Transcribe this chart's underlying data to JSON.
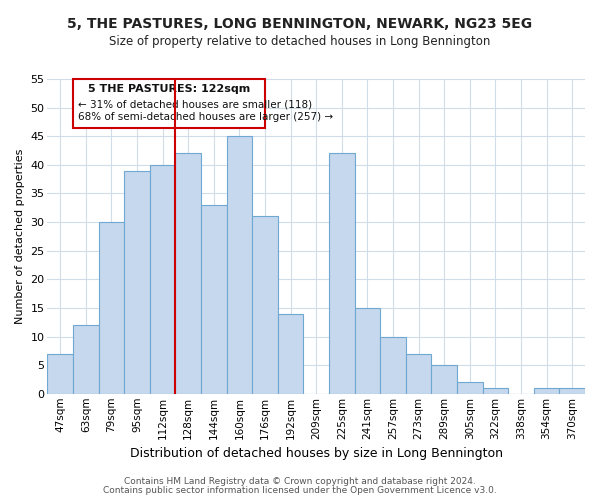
{
  "title": "5, THE PASTURES, LONG BENNINGTON, NEWARK, NG23 5EG",
  "subtitle": "Size of property relative to detached houses in Long Bennington",
  "xlabel": "Distribution of detached houses by size in Long Bennington",
  "ylabel": "Number of detached properties",
  "bar_color": "#c5d8ee",
  "bar_edge_color": "#6fa8d0",
  "categories": [
    "47sqm",
    "63sqm",
    "79sqm",
    "95sqm",
    "112sqm",
    "128sqm",
    "144sqm",
    "160sqm",
    "176sqm",
    "192sqm",
    "209sqm",
    "225sqm",
    "241sqm",
    "257sqm",
    "273sqm",
    "289sqm",
    "305sqm",
    "322sqm",
    "338sqm",
    "354sqm",
    "370sqm"
  ],
  "values": [
    7,
    12,
    30,
    39,
    40,
    42,
    33,
    45,
    31,
    14,
    0,
    42,
    15,
    10,
    7,
    5,
    2,
    1,
    0,
    1,
    1
  ],
  "ylim": [
    0,
    55
  ],
  "yticks": [
    0,
    5,
    10,
    15,
    20,
    25,
    30,
    35,
    40,
    45,
    50,
    55
  ],
  "annotation_title": "5 THE PASTURES: 122sqm",
  "annotation_line1": "← 31% of detached houses are smaller (118)",
  "annotation_line2": "68% of semi-detached houses are larger (257) →",
  "vline_color": "#cc0000",
  "annotation_box_color": "#ffffff",
  "annotation_box_edge_color": "#cc0000",
  "footer1": "Contains HM Land Registry data © Crown copyright and database right 2024.",
  "footer2": "Contains public sector information licensed under the Open Government Licence v3.0.",
  "grid_color": "#d0dce8",
  "background_color": "#ffffff",
  "title_fontsize": 10,
  "subtitle_fontsize": 8.5,
  "xlabel_fontsize": 9,
  "ylabel_fontsize": 8,
  "tick_fontsize": 7.5,
  "ytick_fontsize": 8
}
